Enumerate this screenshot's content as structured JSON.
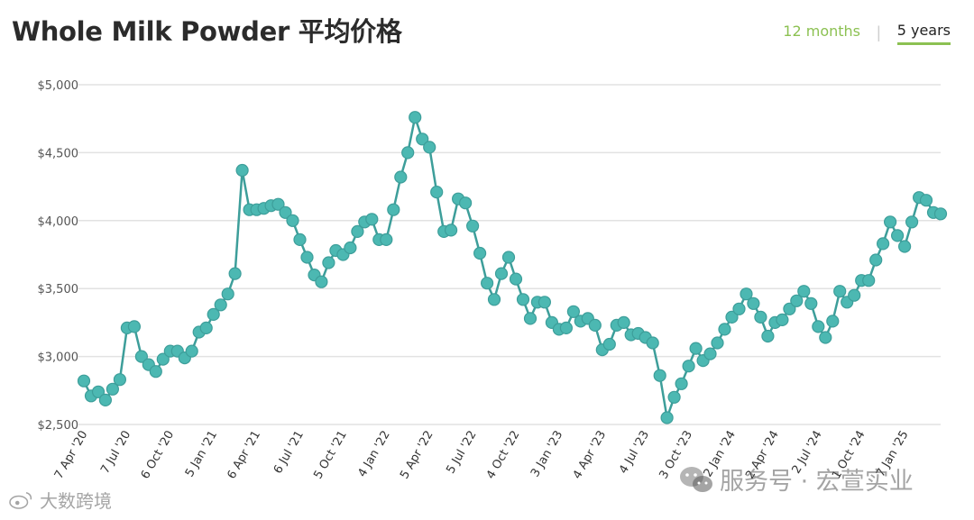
{
  "header": {
    "title": "Whole Milk Powder 平均价格"
  },
  "range_tabs": {
    "tab_12": "12 months",
    "tab_5": "5 years",
    "active": "5 years"
  },
  "colors": {
    "line": "#3d9e9a",
    "marker": "#4cb8b2",
    "accent": "#8cc152",
    "grid": "#e2e2e2"
  },
  "watermarks": {
    "left": "大数跨境",
    "right": "服务号 · 宏萱实业"
  },
  "chart_data": {
    "type": "line",
    "title": "Whole Milk Powder 平均价格",
    "xlabel": "",
    "ylabel": "",
    "ylim": [
      2500,
      5000
    ],
    "y_ticks": [
      2500,
      3000,
      3500,
      4000,
      4500,
      5000
    ],
    "y_tick_labels": [
      "$2,500",
      "$3,000",
      "$3,500",
      "$4,000",
      "$4,500",
      "$5,000"
    ],
    "grid": true,
    "x_tick_labels": [
      {
        "label": "7 Apr '20",
        "index": 0
      },
      {
        "label": "7 Jul '20",
        "index": 6
      },
      {
        "label": "6 Oct '20",
        "index": 12
      },
      {
        "label": "5 Jan '21",
        "index": 18
      },
      {
        "label": "6 Apr '21",
        "index": 24
      },
      {
        "label": "6 Jul '21",
        "index": 30
      },
      {
        "label": "5 Oct '21",
        "index": 36
      },
      {
        "label": "4 Jan '22",
        "index": 42
      },
      {
        "label": "5 Apr '22",
        "index": 48
      },
      {
        "label": "5 Jul '22",
        "index": 54
      },
      {
        "label": "4 Oct '22",
        "index": 60
      },
      {
        "label": "3 Jan '23",
        "index": 66
      },
      {
        "label": "4 Apr '23",
        "index": 72
      },
      {
        "label": "4 Jul '23",
        "index": 78
      },
      {
        "label": "3 Oct '23",
        "index": 84
      },
      {
        "label": "2 Jan '24",
        "index": 90
      },
      {
        "label": "2 Apr '24",
        "index": 96
      },
      {
        "label": "2 Jul '24",
        "index": 102
      },
      {
        "label": "1 Oct '24",
        "index": 108
      },
      {
        "label": "7 Jan '25",
        "index": 114
      }
    ],
    "series": [
      {
        "values": [
          2820,
          2710,
          2740,
          2680,
          2760,
          2830,
          3210,
          3220,
          3000,
          2940,
          2890,
          2980,
          3040,
          3040,
          2990,
          3040,
          3180,
          3210,
          3310,
          3380,
          3460,
          3610,
          4370,
          4080,
          4080,
          4090,
          4110,
          4120,
          4060,
          4000,
          3860,
          3730,
          3600,
          3550,
          3690,
          3780,
          3750,
          3800,
          3920,
          3990,
          4010,
          3860,
          3860,
          4080,
          4320,
          4500,
          4760,
          4600,
          4540,
          4210,
          3920,
          3930,
          4160,
          4130,
          3960,
          3760,
          3540,
          3420,
          3610,
          3730,
          3570,
          3420,
          3280,
          3400,
          3400,
          3250,
          3200,
          3210,
          3330,
          3260,
          3280,
          3230,
          3050,
          3090,
          3230,
          3250,
          3160,
          3170,
          3140,
          3100,
          2860,
          2550,
          2700,
          2800,
          2930,
          3060,
          2970,
          3020,
          3100,
          3200,
          3290,
          3350,
          3460,
          3390,
          3290,
          3150,
          3250,
          3270,
          3350,
          3410,
          3480,
          3390,
          3220,
          3140,
          3260,
          3480,
          3400,
          3450,
          3560,
          3560,
          3710,
          3830,
          3990,
          3890,
          3810,
          3990,
          4170,
          4150,
          4060,
          4050
        ]
      }
    ]
  }
}
